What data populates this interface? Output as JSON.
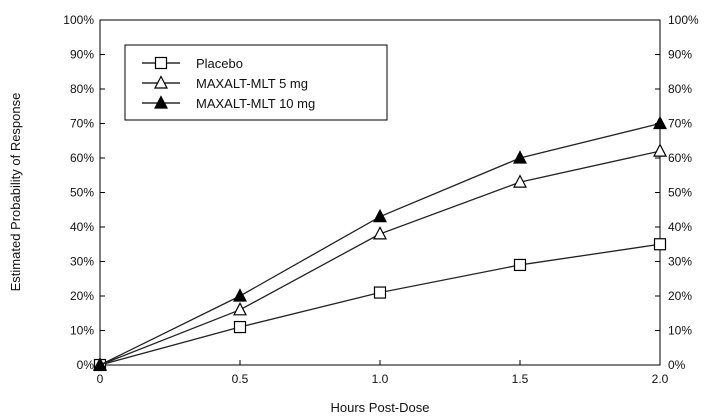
{
  "chart_data": {
    "type": "line",
    "title": "",
    "xlabel": "Hours Post-Dose",
    "ylabel": "Estimated Probability of Response",
    "x": [
      0,
      0.5,
      1.0,
      1.5,
      2.0
    ],
    "x_tick_labels": [
      "0",
      "0.5",
      "1.0",
      "1.5",
      "2.0"
    ],
    "xlim": [
      0,
      2.0
    ],
    "ylim": [
      0,
      100
    ],
    "y_tick_values": [
      0,
      10,
      20,
      30,
      40,
      50,
      60,
      70,
      80,
      90,
      100
    ],
    "y_tick_labels": [
      "0%",
      "10%",
      "20%",
      "30%",
      "40%",
      "50%",
      "60%",
      "70%",
      "80%",
      "90%",
      "100%"
    ],
    "y_axis_both_sides": true,
    "grid": false,
    "legend_position": "top-left",
    "series": [
      {
        "name": "Placebo",
        "marker": "open-square",
        "values": [
          0,
          11,
          21,
          29,
          35
        ]
      },
      {
        "name": "MAXALT-MLT 5 mg",
        "marker": "open-triangle",
        "values": [
          0,
          16,
          38,
          53,
          62
        ]
      },
      {
        "name": "MAXALT-MLT 10 mg",
        "marker": "filled-triangle",
        "values": [
          0,
          20,
          43,
          60,
          70
        ]
      }
    ],
    "colors": {
      "line": "#222222",
      "axis": "#000000",
      "background": "#ffffff"
    }
  }
}
